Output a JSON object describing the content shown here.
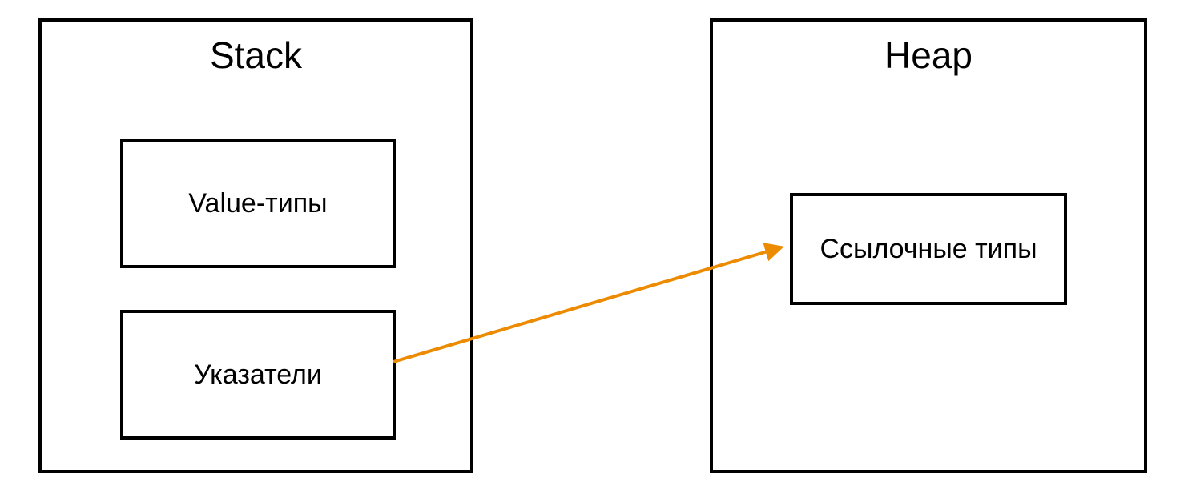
{
  "stack": {
    "title": "Stack",
    "items": {
      "value_types": "Value-типы",
      "pointers": "Указатели"
    }
  },
  "heap": {
    "title": "Heap",
    "items": {
      "reference_types": "Ссылочные типы"
    }
  },
  "colors": {
    "border": "#000000",
    "arrow": "#ED8B00",
    "background": "#FFFFFF"
  }
}
